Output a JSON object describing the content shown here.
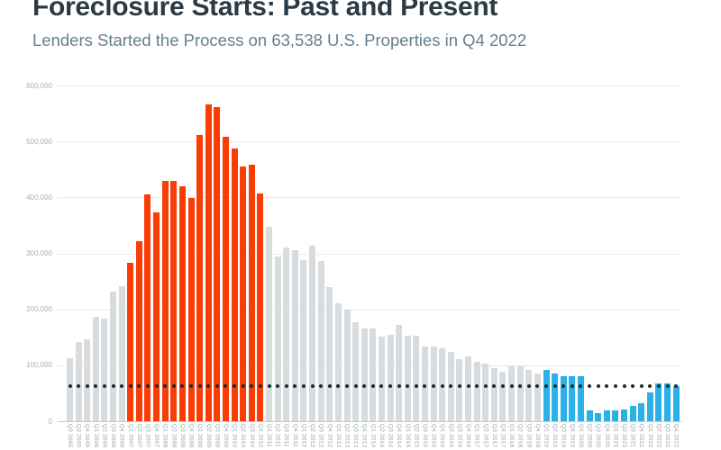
{
  "header": {
    "title": "Foreclosure Starts: Past and Present",
    "subtitle": "Lenders Started the Process on 63,538 U.S. Properties in Q4 2022"
  },
  "chart_data": {
    "type": "bar",
    "title": "Foreclosure Starts: Past and Present",
    "subtitle": "Lenders Started the Process on 63,538 U.S. Properties in Q4 2022",
    "xlabel": "",
    "ylabel": "",
    "ylim": [
      0,
      600000
    ],
    "ytick_interval": 100000,
    "ytick_values": [
      0,
      100000,
      200000,
      300000,
      400000,
      500000,
      600000
    ],
    "ytick_labels": [
      "0",
      "100,000",
      "200,000",
      "300,000",
      "400,000",
      "500,000",
      "600,000"
    ],
    "grid": true,
    "legend": false,
    "categories": [
      "Q2 2005",
      "Q3 2005",
      "Q4 2005",
      "Q1 2006",
      "Q2 2006",
      "Q3 2006",
      "Q4 2006",
      "Q1 2007",
      "Q2 2007",
      "Q3 2007",
      "Q4 2007",
      "Q1 2008",
      "Q2 2008",
      "Q3 2008",
      "Q4 2008",
      "Q1 2009",
      "Q2 2009",
      "Q3 2009",
      "Q4 2009",
      "Q1 2010",
      "Q2 2010",
      "Q3 2010",
      "Q4 2010",
      "Q1 2011",
      "Q2 2011",
      "Q3 2011",
      "Q4 2011",
      "Q1 2012",
      "Q2 2012",
      "Q3 2012",
      "Q4 2012",
      "Q1 2013",
      "Q2 2013",
      "Q3 2013",
      "Q4 2013",
      "Q1 2014",
      "Q2 2014",
      "Q3 2014",
      "Q4 2014",
      "Q1 2015",
      "Q2 2015",
      "Q3 2015",
      "Q4 2015",
      "Q1 2016",
      "Q2 2016",
      "Q3 2016",
      "Q4 2016",
      "Q1 2017",
      "Q2 2017",
      "Q3 2017",
      "Q4 2017",
      "Q1 2018",
      "Q2 2018",
      "Q3 2018",
      "Q4 2018",
      "Q1 2019",
      "Q2 2019",
      "Q3 2019",
      "Q4 2019",
      "Q1 2020",
      "Q2 2020",
      "Q3 2020",
      "Q4 2020",
      "Q1 2021",
      "Q2 2021",
      "Q3 2021",
      "Q4 2021",
      "Q1 2022",
      "Q2 2022",
      "Q3 2022",
      "Q4 2022"
    ],
    "values": [
      113000,
      142000,
      147000,
      187000,
      183000,
      231000,
      241000,
      283000,
      322000,
      406000,
      373000,
      430000,
      429000,
      420000,
      399000,
      512000,
      566000,
      561000,
      508000,
      488000,
      456000,
      459000,
      407000,
      347000,
      295000,
      311000,
      305000,
      288000,
      314000,
      286000,
      240000,
      211000,
      199000,
      177000,
      165000,
      165000,
      151000,
      155000,
      173000,
      153000,
      153000,
      134000,
      133000,
      130000,
      124000,
      111000,
      116000,
      106000,
      103000,
      95000,
      88000,
      98000,
      98000,
      91000,
      86000,
      92000,
      86000,
      80000,
      81000,
      81000,
      19000,
      14000,
      19000,
      19000,
      21000,
      27000,
      32000,
      51000,
      67000,
      67000,
      63538
    ],
    "segments": [
      {
        "name": "crisis-era-highlight",
        "start_index": 7,
        "end_index": 22,
        "color": "#fa3c05"
      },
      {
        "name": "recent-quarters-highlight",
        "start_index": 55,
        "end_index": 70,
        "color": "#29b1e8"
      }
    ],
    "default_bar_color": "#d8dcdf",
    "reference_line": {
      "style": "dotted",
      "value": 63538,
      "color": "#212b32"
    }
  }
}
